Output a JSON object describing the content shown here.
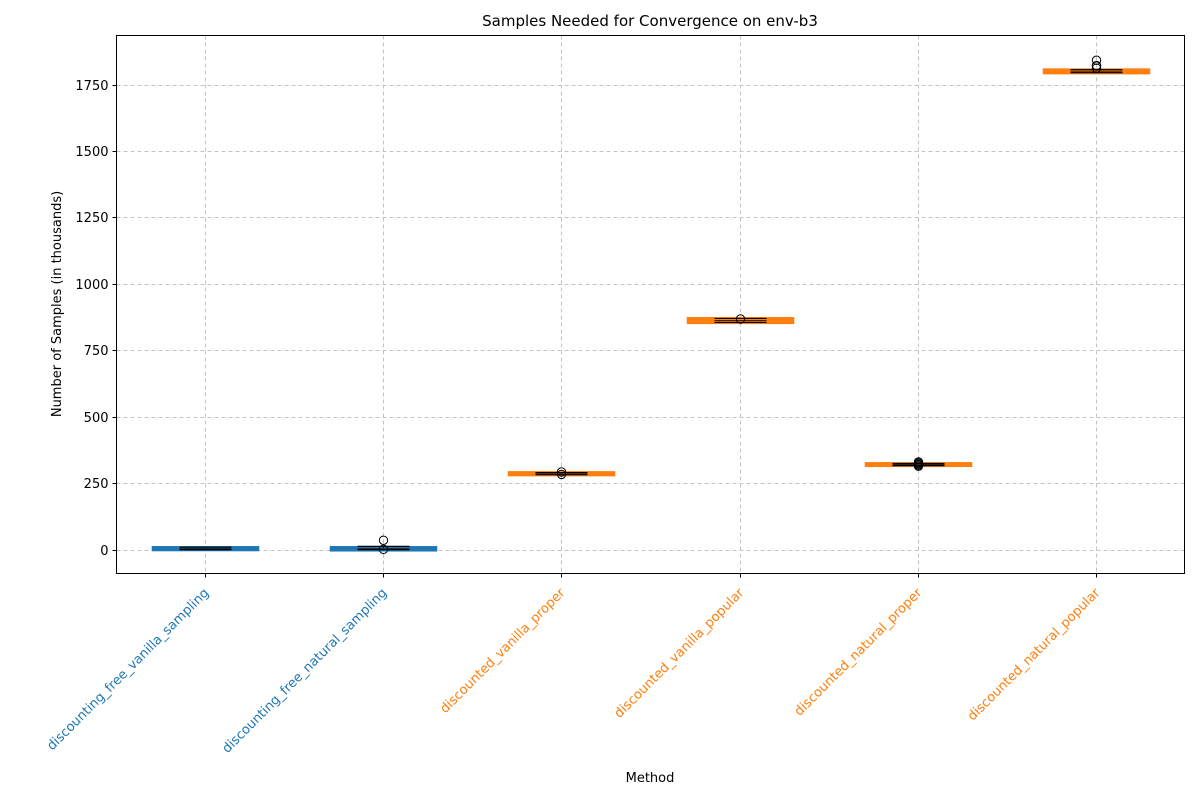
{
  "chart_data": {
    "type": "box",
    "title": "Samples Needed for Convergence on env-b3",
    "xlabel": "Method",
    "ylabel": "Number of Samples (in thousands)",
    "ylim": [
      -90,
      1935
    ],
    "yticks": [
      0,
      250,
      500,
      750,
      1000,
      1250,
      1500,
      1750
    ],
    "grid": true,
    "categories": [
      "discounting_free_vanilla_sampling",
      "discounting_free_natural_sampling",
      "discounted_vanilla_proper",
      "discounted_vanilla_popular",
      "discounted_natural_proper",
      "discounted_natural_popular"
    ],
    "category_colors": [
      "#1f77b4",
      "#1f77b4",
      "#ff7f0e",
      "#ff7f0e",
      "#ff7f0e",
      "#ff7f0e"
    ],
    "boxes": [
      {
        "min": 0,
        "q1": 1,
        "median": 3,
        "q3": 6,
        "max": 9,
        "outliers": [],
        "color": "#1f77b4"
      },
      {
        "min": 0,
        "q1": 0,
        "median": 3,
        "q3": 6,
        "max": 12,
        "outliers": [
          1,
          35
        ],
        "color": "#1f77b4"
      },
      {
        "min": 282,
        "q1": 283,
        "median": 285,
        "q3": 288,
        "max": 290,
        "outliers": [
          283,
          292
        ],
        "color": "#ff7f0e"
      },
      {
        "min": 855,
        "q1": 856,
        "median": 862,
        "q3": 868,
        "max": 870,
        "outliers": [
          868
        ],
        "color": "#ff7f0e"
      },
      {
        "min": 316,
        "q1": 318,
        "median": 320,
        "q3": 322,
        "max": 324,
        "outliers": [
          314,
          318,
          322,
          326,
          330
        ],
        "color": "#ff7f0e"
      },
      {
        "min": 1795,
        "q1": 1796,
        "median": 1798,
        "q3": 1804,
        "max": 1806,
        "outliers": [
          1812,
          1820,
          1822,
          1842
        ],
        "color": "#ff7f0e"
      }
    ]
  }
}
